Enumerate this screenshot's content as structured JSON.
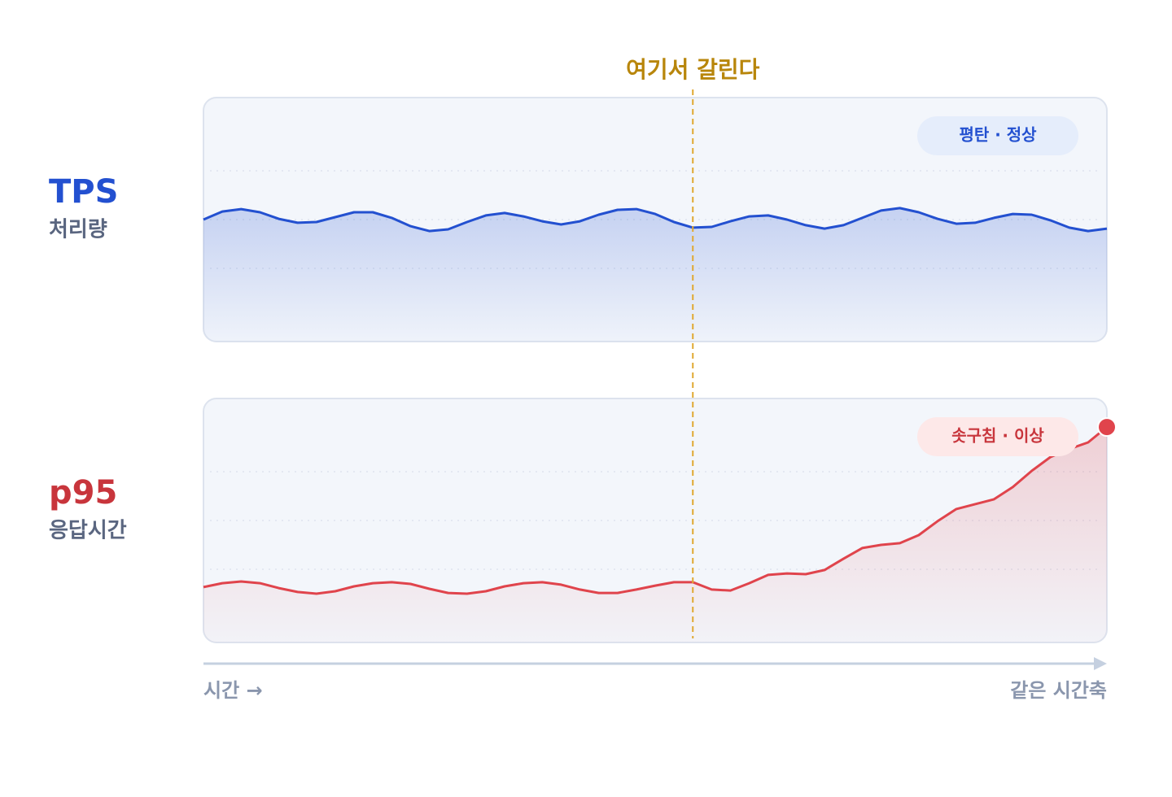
{
  "annotation": "여기서 갈린다",
  "x_label": "시간 →",
  "x_note": "같은 시간축",
  "chart_data": [
    {
      "type": "line",
      "title": "TPS",
      "subtitle": "처리량",
      "badge": "평탄 · 정상",
      "ylim": [
        0,
        100
      ],
      "yticks": [
        30,
        50,
        70
      ],
      "grid": true,
      "series": [
        {
          "color": "#2350d0",
          "values": [
            50,
            53.3,
            54.3,
            53,
            50.3,
            48.7,
            49,
            51,
            53,
            53,
            50.7,
            47.3,
            45.3,
            46,
            49,
            51.7,
            52.7,
            51.3,
            49.3,
            48,
            49.3,
            52,
            54,
            54.3,
            52.3,
            49,
            46.7,
            47,
            49.3,
            51.3,
            51.7,
            50,
            47.7,
            46.3,
            47.7,
            50.7,
            53.7,
            54.7,
            53,
            50.3,
            48.3,
            48.7,
            50.7,
            52.3,
            52,
            49.7,
            46.7,
            45.3,
            46.3
          ]
        }
      ]
    },
    {
      "type": "line",
      "title": "p95",
      "subtitle": "응답시간",
      "badge": "솟구침 · 이상",
      "ylim": [
        0,
        100
      ],
      "yticks": [
        30,
        50,
        70
      ],
      "grid": true,
      "series": [
        {
          "color": "#e0444c",
          "values": [
            22.7,
            24.3,
            25,
            24.3,
            22.3,
            20.7,
            20,
            21,
            23,
            24.3,
            24.7,
            24,
            22,
            20.3,
            20,
            21,
            23,
            24.3,
            24.7,
            23.7,
            21.7,
            20.3,
            20.3,
            21.7,
            23.3,
            24.7,
            24.7,
            21.7,
            21.3,
            24.3,
            27.7,
            28.3,
            28,
            29.7,
            34.3,
            38.7,
            40,
            40.7,
            44,
            49.7,
            54.7,
            56.7,
            58.7,
            63.7,
            70.3,
            76,
            79.3,
            82,
            88.3
          ]
        }
      ]
    }
  ]
}
